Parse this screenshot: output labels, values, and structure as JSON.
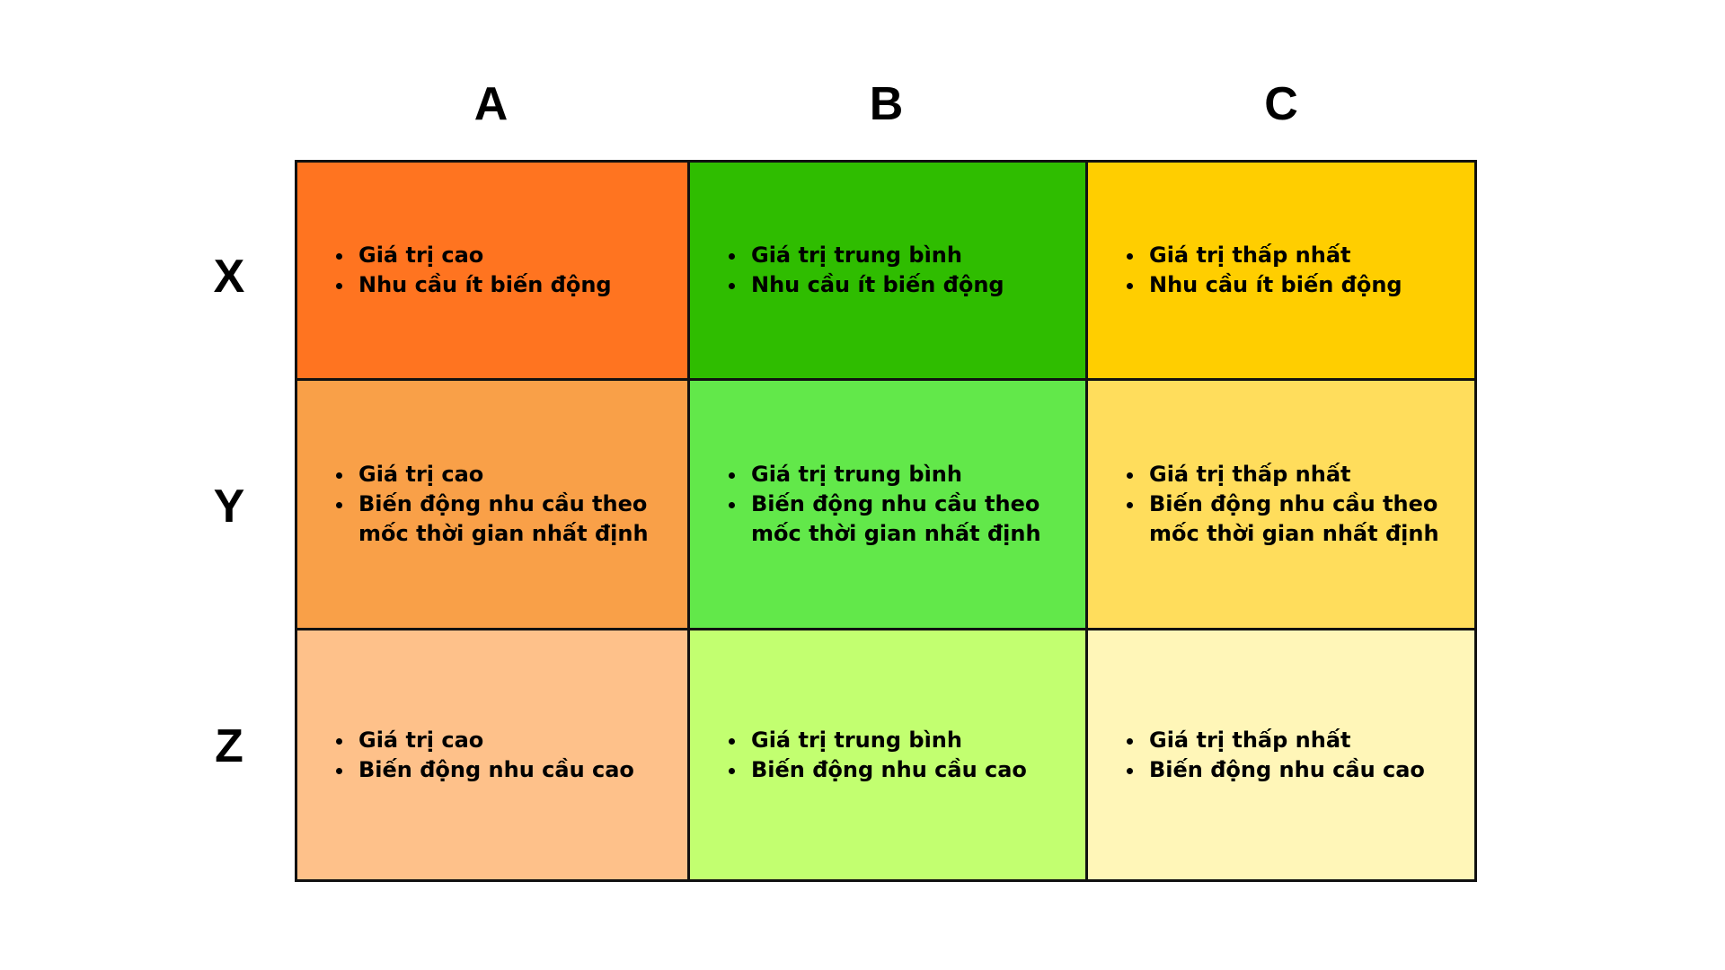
{
  "columns": [
    {
      "label": "A"
    },
    {
      "label": "B"
    },
    {
      "label": "C"
    }
  ],
  "rows": [
    {
      "label": "X"
    },
    {
      "label": "Y"
    },
    {
      "label": "Z"
    }
  ],
  "cells": [
    [
      {
        "color": "#FF7420",
        "items": [
          "Giá trị cao",
          "Nhu cầu ít biến động"
        ]
      },
      {
        "color": "#2FBD00",
        "items": [
          "Giá trị trung bình",
          "Nhu cầu ít biến động"
        ]
      },
      {
        "color": "#FFCE00",
        "items": [
          "Giá trị thấp nhất",
          "Nhu cầu ít biến động"
        ]
      }
    ],
    [
      {
        "color": "#F9A048",
        "items": [
          "Giá trị cao",
          "Biến động nhu cầu theo mốc thời gian nhất định"
        ]
      },
      {
        "color": "#62E84A",
        "items": [
          "Giá trị trung bình",
          "Biến động nhu cầu theo mốc thời gian nhất định"
        ]
      },
      {
        "color": "#FFDD5C",
        "items": [
          "Giá trị thấp nhất",
          "Biến động nhu cầu theo mốc thời gian nhất định"
        ]
      }
    ],
    [
      {
        "color": "#FEC18A",
        "items": [
          "Giá trị cao",
          "Biến động nhu cầu cao"
        ]
      },
      {
        "color": "#C2FF70",
        "items": [
          "Giá trị trung bình",
          "Biến động nhu cầu cao"
        ]
      },
      {
        "color": "#FFF6B8",
        "items": [
          "Giá trị thấp nhất",
          "Biến động nhu cầu cao"
        ]
      }
    ]
  ]
}
